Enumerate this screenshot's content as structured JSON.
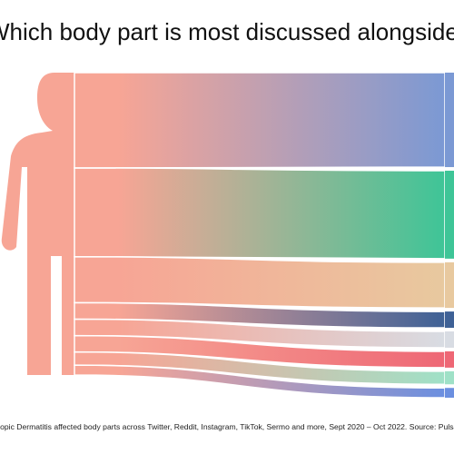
{
  "title": "Which body part is most discussed alongside Eczema?",
  "footnote": "Atopic Dermatitis affected body parts across Twitter, Reddit, Instagram, TikTok, Sermo and more, Sept 2020 – Oct 2022. Source: Pulsar",
  "chart_data": {
    "type": "sankey",
    "title": "Which body part is most discussed alongside Eczema?",
    "source_color": "#f7a595",
    "flows": [
      {
        "value": 29,
        "color": "#7b99d4"
      },
      {
        "value": 27,
        "color": "#3ec597"
      },
      {
        "value": 14,
        "color": "#e8c99f"
      },
      {
        "value": 5,
        "color": "#3e6196"
      },
      {
        "value": 5,
        "color": "#d8dce3"
      },
      {
        "value": 5,
        "color": "#ee6775"
      },
      {
        "value": 4,
        "color": "#9fe1c7"
      },
      {
        "value": 3,
        "color": "#6b8fe0"
      }
    ],
    "legend": "none",
    "grid": false
  }
}
